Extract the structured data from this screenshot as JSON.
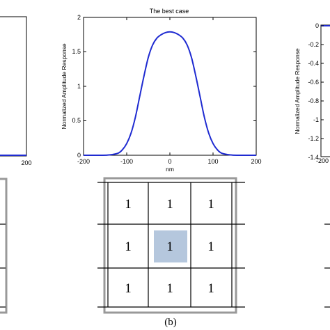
{
  "chart_data": [
    {
      "panel": "left",
      "type": "line",
      "x_ticks": [
        "200"
      ],
      "xlim": [
        0,
        200
      ]
    },
    {
      "panel": "center",
      "type": "line",
      "title": "The best case",
      "xlabel": "nm",
      "ylabel": "Normalized Amplitude Response",
      "xlim": [
        -200,
        200
      ],
      "ylim": [
        0,
        2
      ],
      "x_ticks": [
        "-200",
        "-100",
        "0",
        "100",
        "200"
      ],
      "y_ticks": [
        "0",
        "0.5",
        "1",
        "1.5",
        "2"
      ],
      "color": "#1f2bd1",
      "x": [
        -200,
        -160,
        -140,
        -120,
        -110,
        -100,
        -90,
        -80,
        -70,
        -60,
        -50,
        -40,
        -30,
        -20,
        -10,
        0,
        10,
        20,
        30,
        40,
        50,
        60,
        70,
        80,
        90,
        100,
        110,
        120,
        140,
        160,
        200
      ],
      "y": [
        0,
        0,
        0.005,
        0.03,
        0.08,
        0.17,
        0.32,
        0.55,
        0.85,
        1.15,
        1.42,
        1.6,
        1.7,
        1.75,
        1.78,
        1.79,
        1.78,
        1.75,
        1.7,
        1.6,
        1.42,
        1.15,
        0.85,
        0.55,
        0.32,
        0.17,
        0.08,
        0.03,
        0.005,
        0,
        0
      ]
    },
    {
      "panel": "right",
      "type": "line",
      "ylabel": "Normalized Amplitude Response",
      "ylim": [
        -1.4,
        0
      ],
      "y_ticks": [
        "0",
        "-0.2",
        "-0.4",
        "-0.6",
        "-0.8",
        "-1",
        "-1.2",
        "-1.4"
      ],
      "x_ticks": [
        "-200"
      ],
      "color": "#1f2bd1"
    }
  ],
  "grid": {
    "cells": [
      [
        "1",
        "1",
        "1"
      ],
      [
        "1",
        "1",
        "1"
      ],
      [
        "1",
        "1",
        "1"
      ]
    ],
    "highlight": {
      "row": 1,
      "col": 1,
      "color": "#b5c7dd"
    },
    "caption": "(b)"
  }
}
